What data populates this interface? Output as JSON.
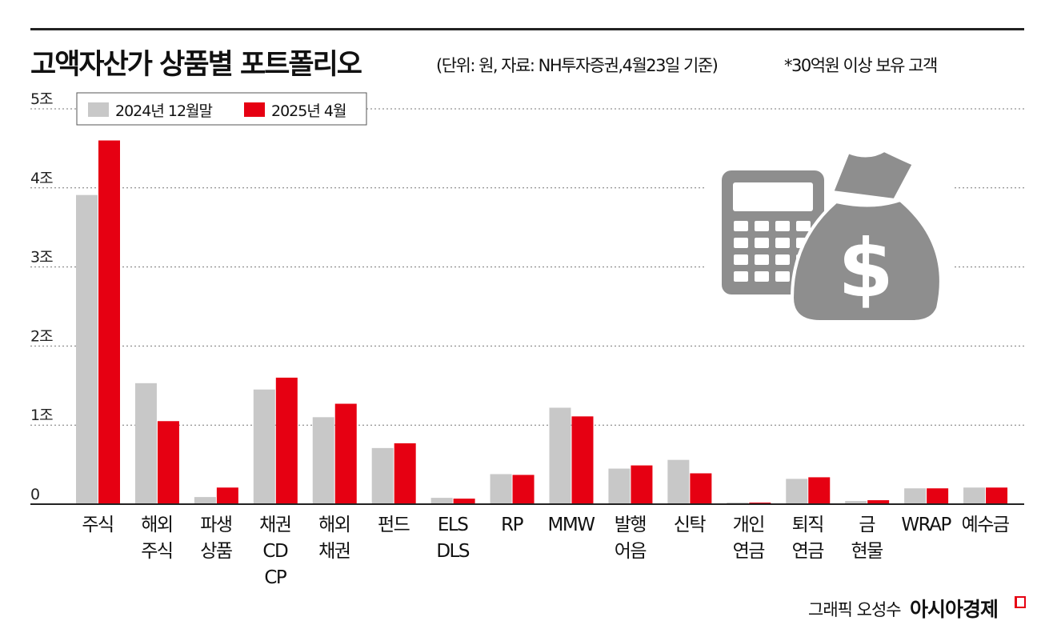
{
  "title": "고액자산가 상품별 포트폴리오",
  "subtitle": "(단위: 원, 자료: NH투자증권,4월23일 기준)",
  "note": "*30억원 이상 보유 고객",
  "credit": "그래픽 오성수",
  "brand": "아시아경제",
  "colors": {
    "series_2024": "#c8c8c8",
    "series_2025": "#e60012",
    "icon": "#8e8e8e"
  },
  "icons": [
    "calculator-icon",
    "money-bag-dollar-icon"
  ],
  "chart_data": {
    "type": "bar",
    "title": "고액자산가 상품별 포트폴리오",
    "xlabel": "",
    "ylabel": "",
    "ylim": [
      0,
      5
    ],
    "yticks": [
      {
        "v": 0,
        "label": "0"
      },
      {
        "v": 1,
        "label": "1조"
      },
      {
        "v": 2,
        "label": "2조"
      },
      {
        "v": 3,
        "label": "3조"
      },
      {
        "v": 4,
        "label": "4조"
      },
      {
        "v": 5,
        "label": "5조"
      }
    ],
    "grid": true,
    "legend_placement": "top-left",
    "categories": [
      [
        "주식"
      ],
      [
        "해외",
        "주식"
      ],
      [
        "파생",
        "상품"
      ],
      [
        "채권",
        "CD",
        "CP"
      ],
      [
        "해외",
        "채권"
      ],
      [
        "펀드"
      ],
      [
        "ELS",
        "DLS"
      ],
      [
        "RP"
      ],
      [
        "MMW"
      ],
      [
        "발행",
        "어음"
      ],
      [
        "신탁"
      ],
      [
        "개인",
        "연금"
      ],
      [
        "퇴직",
        "연금"
      ],
      [
        "금",
        "현물"
      ],
      [
        "WRAP"
      ],
      [
        "예수금"
      ]
    ],
    "series": [
      {
        "name": "2024년 12월말",
        "color": "#c8c8c8",
        "values": [
          3.91,
          1.53,
          0.09,
          1.45,
          1.1,
          0.71,
          0.08,
          0.38,
          1.22,
          0.45,
          0.56,
          0.02,
          0.32,
          0.04,
          0.2,
          0.21
        ]
      },
      {
        "name": "2025년 4월",
        "color": "#e60012",
        "values": [
          4.6,
          1.05,
          0.21,
          1.6,
          1.27,
          0.77,
          0.07,
          0.37,
          1.11,
          0.49,
          0.39,
          0.02,
          0.34,
          0.05,
          0.2,
          0.21
        ]
      }
    ]
  }
}
